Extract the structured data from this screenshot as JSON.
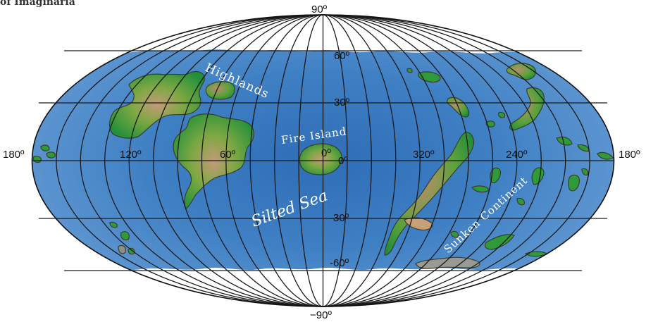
{
  "header": {
    "partial_title": "of Imaginaria"
  },
  "labels": {
    "lat_top": "90º",
    "lat_60": "60º",
    "lat_30": "30º",
    "lat_0": "0º",
    "lat_m30": "-30º",
    "lat_m60": "-60º",
    "lat_bottom": "−90º",
    "lon_180_left": "180º",
    "lon_120": "120º",
    "lon_60": "60º",
    "lon_0": "0º",
    "lon_320": "320º",
    "lon_240": "240º",
    "lon_180_right": "180º"
  },
  "regions": {
    "highlands": "Highlands",
    "fire_island": "Fire Island",
    "silted_sea": "Silted Sea",
    "sunken_continent": "Sunken Continent"
  },
  "colors": {
    "ocean": "#5b93cf",
    "ocean_center": "#2f6db6",
    "land_green": "#2f9a3a",
    "land_brown": "#b98e6a",
    "ice": "#ffffff"
  }
}
